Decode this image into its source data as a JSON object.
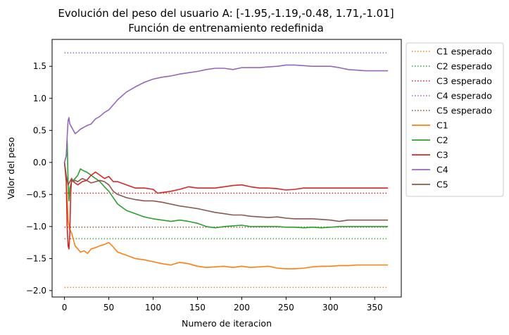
{
  "chart_data": {
    "type": "line",
    "title": "Evolución del peso del usuario A: [-1.95,-1.19,-0.48, 1.71,-1.01]",
    "subtitle": "Función de entrenamiento redefinida",
    "xlabel": "Numero de iteracion",
    "ylabel": "Valor del peso",
    "xlim": [
      -14,
      380
    ],
    "ylim": [
      -2.1,
      1.92
    ],
    "xticks": [
      0,
      50,
      100,
      150,
      200,
      250,
      300,
      350
    ],
    "xtick_labels": [
      "0",
      "50",
      "100",
      "150",
      "200",
      "250",
      "300",
      "350"
    ],
    "yticks": [
      -2.0,
      -1.5,
      -1.0,
      -0.5,
      0.0,
      0.5,
      1.0,
      1.5
    ],
    "ytick_labels": [
      "−2.0",
      "−1.5",
      "−1.0",
      "−0.5",
      "0.0",
      "0.5",
      "1.0",
      "1.5"
    ],
    "grid": false,
    "legend_position": "outside-right",
    "legend": [
      {
        "label": "C1 esperado",
        "color": "#ff7f0e",
        "style": "dotted"
      },
      {
        "label": "C2 esperado",
        "color": "#2ca02c",
        "style": "dotted"
      },
      {
        "label": "C3 esperado",
        "color": "#d62728",
        "style": "dotted"
      },
      {
        "label": "C4 esperado",
        "color": "#9467bd",
        "style": "dotted"
      },
      {
        "label": "C5 esperado",
        "color": "#8c564b",
        "style": "dotted"
      },
      {
        "label": "C1",
        "color": "#ff7f0e",
        "style": "solid"
      },
      {
        "label": "C2",
        "color": "#2ca02c",
        "style": "solid"
      },
      {
        "label": "C3",
        "color": "#d62728",
        "style": "solid"
      },
      {
        "label": "C4",
        "color": "#9467bd",
        "style": "solid"
      },
      {
        "label": "C5",
        "color": "#8c564b",
        "style": "solid"
      }
    ],
    "reference_lines": [
      {
        "name": "C1 esperado",
        "value": -1.95,
        "color": "#ff7f0e",
        "x_range": [
          0,
          365
        ]
      },
      {
        "name": "C2 esperado",
        "value": -1.19,
        "color": "#2ca02c",
        "x_range": [
          0,
          365
        ]
      },
      {
        "name": "C3 esperado",
        "value": -0.48,
        "color": "#d62728",
        "x_range": [
          0,
          365
        ]
      },
      {
        "name": "C4 esperado",
        "value": 1.71,
        "color": "#9467bd",
        "x_range": [
          0,
          365
        ]
      },
      {
        "name": "C5 esperado",
        "value": -1.01,
        "color": "#8c564b",
        "x_range": [
          0,
          365
        ]
      }
    ],
    "series": [
      {
        "name": "C1",
        "color": "#ff7f0e",
        "points": [
          [
            0,
            0.0
          ],
          [
            2,
            -0.25
          ],
          [
            4,
            -0.9
          ],
          [
            6,
            -1.05
          ],
          [
            8,
            -1.1
          ],
          [
            10,
            -1.2
          ],
          [
            12,
            -1.3
          ],
          [
            15,
            -1.35
          ],
          [
            18,
            -1.4
          ],
          [
            22,
            -1.38
          ],
          [
            26,
            -1.42
          ],
          [
            30,
            -1.35
          ],
          [
            35,
            -1.33
          ],
          [
            40,
            -1.3
          ],
          [
            45,
            -1.28
          ],
          [
            50,
            -1.25
          ],
          [
            55,
            -1.32
          ],
          [
            60,
            -1.4
          ],
          [
            70,
            -1.45
          ],
          [
            80,
            -1.5
          ],
          [
            90,
            -1.52
          ],
          [
            100,
            -1.55
          ],
          [
            110,
            -1.58
          ],
          [
            120,
            -1.6
          ],
          [
            130,
            -1.56
          ],
          [
            140,
            -1.58
          ],
          [
            150,
            -1.62
          ],
          [
            160,
            -1.64
          ],
          [
            170,
            -1.63
          ],
          [
            180,
            -1.62
          ],
          [
            190,
            -1.64
          ],
          [
            200,
            -1.62
          ],
          [
            210,
            -1.64
          ],
          [
            220,
            -1.63
          ],
          [
            230,
            -1.62
          ],
          [
            240,
            -1.65
          ],
          [
            250,
            -1.66
          ],
          [
            260,
            -1.66
          ],
          [
            270,
            -1.65
          ],
          [
            280,
            -1.63
          ],
          [
            290,
            -1.62
          ],
          [
            300,
            -1.62
          ],
          [
            310,
            -1.61
          ],
          [
            320,
            -1.61
          ],
          [
            330,
            -1.6
          ],
          [
            340,
            -1.6
          ],
          [
            350,
            -1.6
          ],
          [
            360,
            -1.6
          ],
          [
            365,
            -1.6
          ]
        ]
      },
      {
        "name": "C2",
        "color": "#2ca02c",
        "points": [
          [
            0,
            0.0
          ],
          [
            2,
            0.1
          ],
          [
            3,
            0.35
          ],
          [
            4,
            -0.3
          ],
          [
            5,
            -0.6
          ],
          [
            6,
            -0.4
          ],
          [
            8,
            -0.3
          ],
          [
            10,
            -0.28
          ],
          [
            12,
            -0.25
          ],
          [
            15,
            -0.2
          ],
          [
            18,
            -0.1
          ],
          [
            20,
            -0.12
          ],
          [
            25,
            -0.15
          ],
          [
            30,
            -0.2
          ],
          [
            35,
            -0.25
          ],
          [
            40,
            -0.3
          ],
          [
            45,
            -0.38
          ],
          [
            50,
            -0.45
          ],
          [
            55,
            -0.55
          ],
          [
            60,
            -0.65
          ],
          [
            70,
            -0.75
          ],
          [
            80,
            -0.8
          ],
          [
            90,
            -0.85
          ],
          [
            100,
            -0.88
          ],
          [
            110,
            -0.9
          ],
          [
            120,
            -0.92
          ],
          [
            130,
            -0.9
          ],
          [
            140,
            -0.92
          ],
          [
            150,
            -0.95
          ],
          [
            160,
            -1.0
          ],
          [
            170,
            -1.02
          ],
          [
            180,
            -1.0
          ],
          [
            190,
            -0.99
          ],
          [
            200,
            -0.98
          ],
          [
            210,
            -1.0
          ],
          [
            220,
            -1.0
          ],
          [
            230,
            -1.0
          ],
          [
            240,
            -1.0
          ],
          [
            250,
            -1.01
          ],
          [
            260,
            -1.01
          ],
          [
            270,
            -1.02
          ],
          [
            280,
            -1.01
          ],
          [
            290,
            -1.02
          ],
          [
            300,
            -1.01
          ],
          [
            310,
            -1.0
          ],
          [
            320,
            -1.0
          ],
          [
            330,
            -1.0
          ],
          [
            340,
            -1.0
          ],
          [
            350,
            -1.0
          ],
          [
            360,
            -1.0
          ],
          [
            365,
            -1.0
          ]
        ]
      },
      {
        "name": "C3",
        "color": "#d62728",
        "points": [
          [
            0,
            0.0
          ],
          [
            2,
            -0.3
          ],
          [
            3,
            -1.0
          ],
          [
            4,
            -1.3
          ],
          [
            5,
            -1.35
          ],
          [
            6,
            -1.1
          ],
          [
            7,
            -0.5
          ],
          [
            8,
            -0.25
          ],
          [
            10,
            -0.3
          ],
          [
            15,
            -0.35
          ],
          [
            20,
            -0.3
          ],
          [
            25,
            -0.28
          ],
          [
            30,
            -0.2
          ],
          [
            35,
            -0.15
          ],
          [
            40,
            -0.2
          ],
          [
            45,
            -0.25
          ],
          [
            50,
            -0.22
          ],
          [
            55,
            -0.3
          ],
          [
            60,
            -0.3
          ],
          [
            70,
            -0.35
          ],
          [
            80,
            -0.4
          ],
          [
            90,
            -0.4
          ],
          [
            100,
            -0.42
          ],
          [
            105,
            -0.48
          ],
          [
            110,
            -0.47
          ],
          [
            120,
            -0.45
          ],
          [
            130,
            -0.42
          ],
          [
            140,
            -0.38
          ],
          [
            150,
            -0.4
          ],
          [
            160,
            -0.4
          ],
          [
            170,
            -0.4
          ],
          [
            180,
            -0.38
          ],
          [
            190,
            -0.36
          ],
          [
            200,
            -0.35
          ],
          [
            210,
            -0.38
          ],
          [
            220,
            -0.4
          ],
          [
            230,
            -0.4
          ],
          [
            240,
            -0.41
          ],
          [
            250,
            -0.43
          ],
          [
            260,
            -0.42
          ],
          [
            270,
            -0.4
          ],
          [
            280,
            -0.4
          ],
          [
            290,
            -0.4
          ],
          [
            300,
            -0.4
          ],
          [
            310,
            -0.4
          ],
          [
            320,
            -0.4
          ],
          [
            330,
            -0.4
          ],
          [
            340,
            -0.4
          ],
          [
            350,
            -0.4
          ],
          [
            360,
            -0.4
          ],
          [
            365,
            -0.4
          ]
        ]
      },
      {
        "name": "C4",
        "color": "#9467bd",
        "points": [
          [
            0,
            0.0
          ],
          [
            2,
            0.1
          ],
          [
            3,
            0.4
          ],
          [
            4,
            0.65
          ],
          [
            5,
            0.7
          ],
          [
            6,
            0.6
          ],
          [
            8,
            0.55
          ],
          [
            10,
            0.5
          ],
          [
            12,
            0.45
          ],
          [
            15,
            0.48
          ],
          [
            18,
            0.52
          ],
          [
            22,
            0.55
          ],
          [
            26,
            0.58
          ],
          [
            30,
            0.6
          ],
          [
            35,
            0.68
          ],
          [
            40,
            0.72
          ],
          [
            45,
            0.78
          ],
          [
            50,
            0.82
          ],
          [
            55,
            0.9
          ],
          [
            60,
            0.98
          ],
          [
            70,
            1.1
          ],
          [
            80,
            1.18
          ],
          [
            90,
            1.25
          ],
          [
            100,
            1.3
          ],
          [
            110,
            1.33
          ],
          [
            120,
            1.35
          ],
          [
            130,
            1.38
          ],
          [
            140,
            1.4
          ],
          [
            150,
            1.42
          ],
          [
            160,
            1.45
          ],
          [
            170,
            1.47
          ],
          [
            180,
            1.47
          ],
          [
            190,
            1.45
          ],
          [
            200,
            1.48
          ],
          [
            210,
            1.48
          ],
          [
            220,
            1.48
          ],
          [
            230,
            1.49
          ],
          [
            240,
            1.5
          ],
          [
            250,
            1.52
          ],
          [
            260,
            1.52
          ],
          [
            270,
            1.51
          ],
          [
            280,
            1.5
          ],
          [
            290,
            1.5
          ],
          [
            300,
            1.5
          ],
          [
            310,
            1.48
          ],
          [
            320,
            1.45
          ],
          [
            330,
            1.44
          ],
          [
            340,
            1.43
          ],
          [
            350,
            1.43
          ],
          [
            360,
            1.43
          ],
          [
            365,
            1.43
          ]
        ]
      },
      {
        "name": "C5",
        "color": "#8c564b",
        "points": [
          [
            0,
            0.0
          ],
          [
            2,
            -0.2
          ],
          [
            4,
            -0.35
          ],
          [
            6,
            -0.3
          ],
          [
            8,
            -0.25
          ],
          [
            10,
            -0.3
          ],
          [
            12,
            -0.28
          ],
          [
            15,
            -0.3
          ],
          [
            20,
            -0.25
          ],
          [
            25,
            -0.28
          ],
          [
            30,
            -0.32
          ],
          [
            35,
            -0.3
          ],
          [
            40,
            -0.28
          ],
          [
            45,
            -0.3
          ],
          [
            50,
            -0.35
          ],
          [
            55,
            -0.45
          ],
          [
            60,
            -0.5
          ],
          [
            70,
            -0.55
          ],
          [
            80,
            -0.58
          ],
          [
            90,
            -0.6
          ],
          [
            100,
            -0.6
          ],
          [
            110,
            -0.62
          ],
          [
            120,
            -0.65
          ],
          [
            130,
            -0.68
          ],
          [
            140,
            -0.7
          ],
          [
            150,
            -0.72
          ],
          [
            160,
            -0.75
          ],
          [
            170,
            -0.78
          ],
          [
            180,
            -0.8
          ],
          [
            190,
            -0.82
          ],
          [
            200,
            -0.82
          ],
          [
            210,
            -0.84
          ],
          [
            220,
            -0.85
          ],
          [
            230,
            -0.86
          ],
          [
            240,
            -0.85
          ],
          [
            250,
            -0.87
          ],
          [
            260,
            -0.88
          ],
          [
            270,
            -0.88
          ],
          [
            280,
            -0.88
          ],
          [
            290,
            -0.89
          ],
          [
            300,
            -0.9
          ],
          [
            310,
            -0.92
          ],
          [
            320,
            -0.9
          ],
          [
            330,
            -0.9
          ],
          [
            340,
            -0.9
          ],
          [
            350,
            -0.9
          ],
          [
            360,
            -0.9
          ],
          [
            365,
            -0.9
          ]
        ]
      }
    ]
  }
}
